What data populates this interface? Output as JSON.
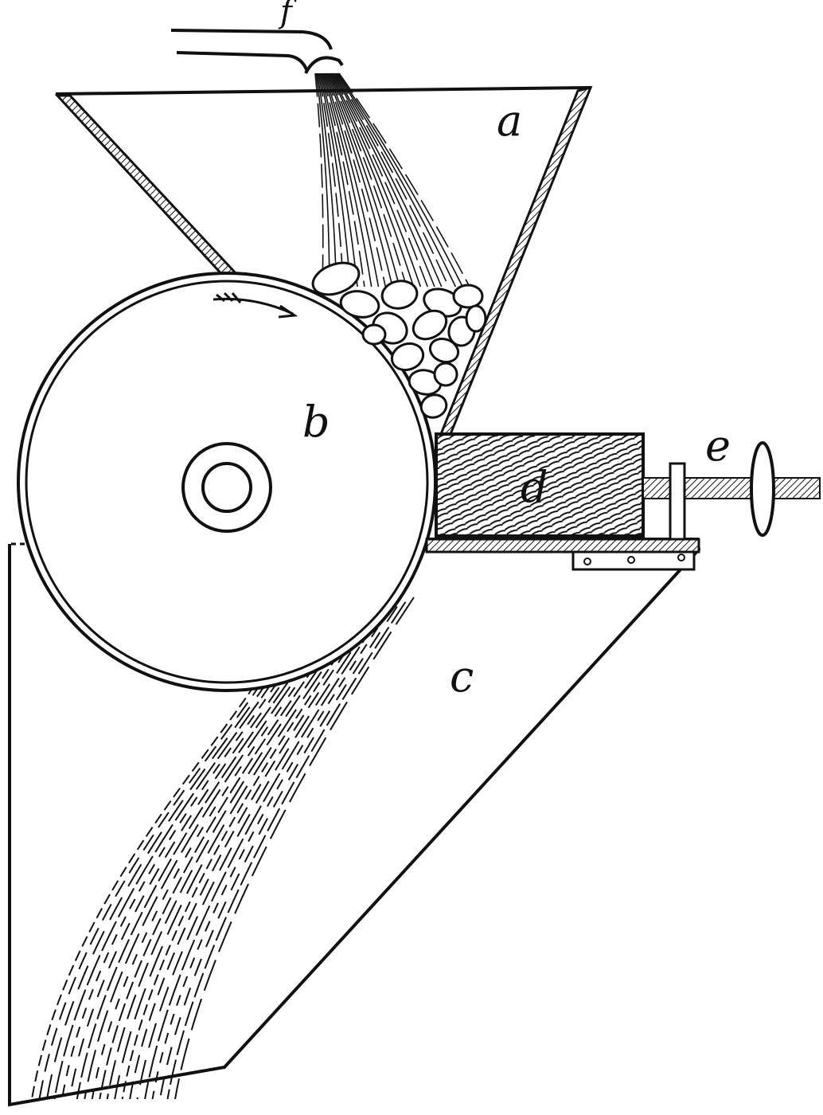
{
  "figure": {
    "labels": {
      "hopper": "a",
      "drum": "b",
      "trough": "c",
      "block": "d",
      "screw": "e",
      "pipe": "f"
    },
    "ink_color": "#111111",
    "paper_color": "#ffffff"
  }
}
